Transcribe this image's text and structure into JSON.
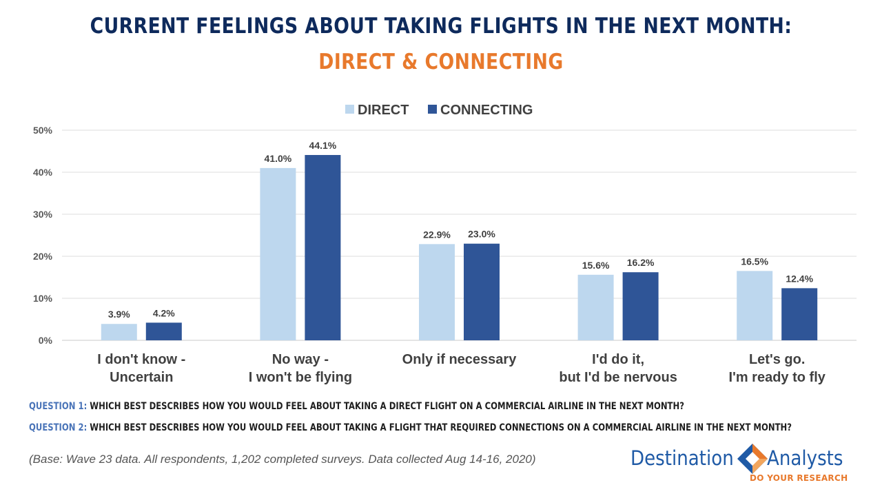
{
  "title": "CURRENT FEELINGS ABOUT TAKING FLIGHTS IN THE NEXT MONTH:",
  "subtitle": "DIRECT & CONNECTING",
  "chart_data": {
    "type": "bar",
    "categories": [
      [
        "I don't know -",
        "Uncertain"
      ],
      [
        "No way -",
        "I won't be flying"
      ],
      [
        "Only if necessary"
      ],
      [
        "I'd do it,",
        "but I'd be nervous"
      ],
      [
        "Let's go.",
        "I'm ready to fly"
      ]
    ],
    "series": [
      {
        "name": "DIRECT",
        "color": "#bdd7ee",
        "values": [
          3.9,
          41.0,
          22.9,
          15.6,
          16.5
        ],
        "labels": [
          "3.9%",
          "41.0%",
          "22.9%",
          "15.6%",
          "16.5%"
        ]
      },
      {
        "name": "CONNECTING",
        "color": "#2f5597",
        "values": [
          4.2,
          44.1,
          23.0,
          16.2,
          12.4
        ],
        "labels": [
          "4.2%",
          "44.1%",
          "23.0%",
          "16.2%",
          "12.4%"
        ]
      }
    ],
    "ylim": [
      0,
      50
    ],
    "yticks": [
      0,
      10,
      20,
      30,
      40,
      50
    ],
    "ytick_labels": [
      "0%",
      "10%",
      "20%",
      "30%",
      "40%",
      "50%"
    ],
    "grid": true,
    "legend": "top-center"
  },
  "questions": [
    {
      "label": "QUESTION 1:",
      "text": "WHICH BEST DESCRIBES HOW YOU WOULD FEEL ABOUT TAKING A DIRECT FLIGHT ON A COMMERCIAL AIRLINE IN THE NEXT MONTH?"
    },
    {
      "label": "QUESTION 2:",
      "text": "WHICH BEST DESCRIBES HOW YOU WOULD FEEL ABOUT TAKING A FLIGHT THAT REQUIRED CONNECTIONS ON A COMMERCIAL AIRLINE IN THE NEXT MONTH?"
    }
  ],
  "base_note": "(Base: Wave 23 data. All respondents, 1,202 completed surveys. Data collected Aug 14-16, 2020)",
  "logo": {
    "word_left": "Destination",
    "word_right": "Analysts",
    "tagline": "DO YOUR RESEARCH",
    "brand_blue": "#1f5aa6",
    "brand_orange": "#e8792c"
  }
}
